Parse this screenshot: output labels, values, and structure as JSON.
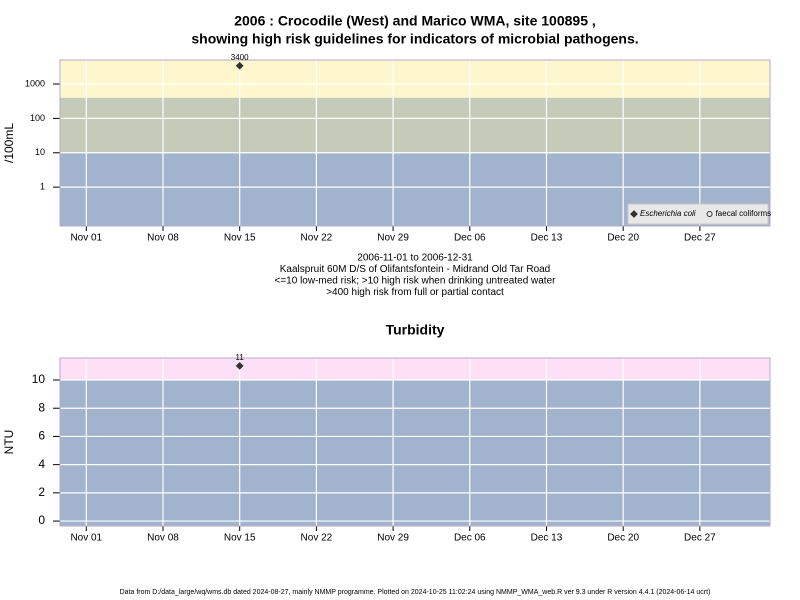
{
  "chart_data": [
    {
      "type": "scatter",
      "title": "2006 : Crocodile (West) and Marico WMA, site 100895 ,",
      "subtitle": "showing high risk guidelines for indicators of microbial pathogens.",
      "y_label": "/100mL",
      "notes": [
        "2006-11-01 to 2006-12-31",
        "Kaalspruit 60M D/S of Olifantsfontein - Midrand Old Tar Road",
        "<=10 low-med risk; >10 high risk when drinking untreated water",
        ">400 high risk from full or partial contact"
      ],
      "x": [
        "2006-11-15"
      ],
      "xlim": [
        "2006-11-01",
        "2006-12-31"
      ],
      "xticks": [
        {
          "value": "2006-11-01",
          "label": "Nov 01"
        },
        {
          "value": "2006-11-08",
          "label": "Nov 08"
        },
        {
          "value": "2006-11-15",
          "label": "Nov 15"
        },
        {
          "value": "2006-11-22",
          "label": "Nov 22"
        },
        {
          "value": "2006-11-29",
          "label": "Nov 29"
        },
        {
          "value": "2006-12-06",
          "label": "Dec 06"
        },
        {
          "value": "2006-12-13",
          "label": "Dec 13"
        },
        {
          "value": "2006-12-20",
          "label": "Dec 20"
        },
        {
          "value": "2006-12-27",
          "label": "Dec 27"
        }
      ],
      "log_y": true,
      "ylim": [
        0.074,
        5000
      ],
      "yticks": [
        1,
        10,
        100,
        1000
      ],
      "grid": true,
      "bands": [
        {
          "to": 10,
          "color": "#a2b3cd"
        },
        {
          "from": 10,
          "to": 400,
          "color": "#c4cbb9"
        },
        {
          "from": 400,
          "color": "#fef6cc"
        }
      ],
      "legend": "bottomright",
      "series": [
        {
          "name": "Escherichia coli",
          "color": "#333333",
          "marker": "diamond",
          "values": [
            3400
          ]
        },
        {
          "name": "faecal coliforms",
          "color": "#333333",
          "marker": "circle",
          "values": [
            null
          ]
        }
      ]
    },
    {
      "type": "scatter",
      "title": "Turbidity",
      "y_label": "NTU",
      "x": [
        "2006-11-15"
      ],
      "xlim": [
        "2006-11-01",
        "2006-12-31"
      ],
      "xticks": [
        {
          "value": "2006-11-01",
          "label": "Nov 01"
        },
        {
          "value": "2006-11-08",
          "label": "Nov 08"
        },
        {
          "value": "2006-11-15",
          "label": "Nov 15"
        },
        {
          "value": "2006-11-22",
          "label": "Nov 22"
        },
        {
          "value": "2006-11-29",
          "label": "Nov 29"
        },
        {
          "value": "2006-12-06",
          "label": "Dec 06"
        },
        {
          "value": "2006-12-13",
          "label": "Dec 13"
        },
        {
          "value": "2006-12-20",
          "label": "Dec 20"
        },
        {
          "value": "2006-12-27",
          "label": "Dec 27"
        }
      ],
      "log_y": false,
      "ylim": [
        -0.35,
        11.56
      ],
      "yticks": [
        0,
        2,
        4,
        6,
        8,
        10
      ],
      "grid": true,
      "bands": [
        {
          "to": 10,
          "color": "#a2b3cd"
        },
        {
          "from": 10,
          "color": "#fde0f5"
        }
      ],
      "series": [
        {
          "color": "#333333",
          "marker": "diamond",
          "values": [
            11
          ]
        }
      ]
    }
  ],
  "footer": "Data from D:/data_large/wq/wms.db dated 2024-08-27, mainly NMMP programme. Plotted on 2024-10-25 11:02:24 using NMMP_WMA_web.R ver 9.3 under R version 4.4.1 (2024-06-14 ucrt)"
}
